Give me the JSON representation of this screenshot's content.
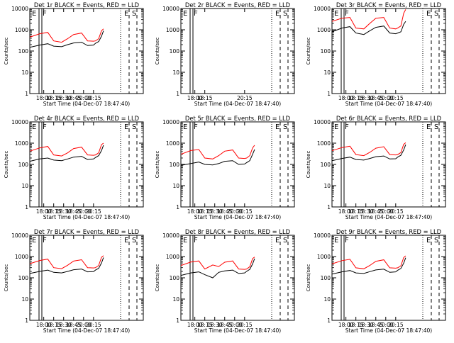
{
  "figure": {
    "xlabel": "Start Time (04-Dec-07 18:47:40)",
    "ylabel": "Counts/sec",
    "legend": "BLACK = Events, RED = LLD",
    "event_label": "Events",
    "lld_label": "LLD",
    "colors": {
      "events": "#000000",
      "lld": "#ff0000",
      "axes": "#000000",
      "background": "#ffffff"
    }
  },
  "chart_data": [
    {
      "type": "line",
      "title": "Det 1r BLACK = Events, RED = LLD",
      "detector": "Det 1r",
      "xlabel": "Start Time (04-Dec-07 18:47:40)",
      "ylabel": "Counts/sec",
      "yscale": "log",
      "xlim": [
        17.65,
        20.5
      ],
      "ylim": [
        1,
        10000
      ],
      "xticks": [
        18.0,
        18.25,
        18.5,
        18.75,
        19.0,
        19.25
      ],
      "xticklabels": [
        "18:00",
        "18:15",
        "18:30",
        "18:45",
        "20:00",
        "20:15"
      ],
      "yticks": [
        1,
        10,
        100,
        1000,
        10000
      ],
      "yticklabels": [
        "1",
        "10",
        "100",
        "1000",
        "10000"
      ],
      "markers": [
        "E",
        "F",
        "E",
        "S"
      ],
      "shape": "dip",
      "series": [
        {
          "name": "Events",
          "x": [
            17.65,
            17.9,
            18.1,
            18.25,
            18.45,
            18.6,
            18.75,
            18.95,
            19.1,
            19.25,
            19.3,
            19.38,
            19.45,
            19.5
          ],
          "y": [
            150,
            190,
            220,
            170,
            160,
            200,
            240,
            260,
            180,
            190,
            230,
            280,
            500,
            900
          ]
        },
        {
          "name": "LLD",
          "x": [
            17.65,
            17.9,
            18.1,
            18.25,
            18.45,
            18.6,
            18.75,
            18.95,
            19.1,
            19.25,
            19.3,
            19.38,
            19.45,
            19.5
          ],
          "y": [
            450,
            650,
            750,
            300,
            260,
            380,
            600,
            700,
            300,
            290,
            300,
            380,
            900,
            1100
          ]
        }
      ]
    },
    {
      "type": "line",
      "title": "Det 2r BLACK = Events, RED = LLD",
      "detector": "Det 2r",
      "xlabel": "Start Time (04-Dec-07 18:47:40)",
      "ylabel": "Counts/sec",
      "yscale": "log",
      "xlim": [
        17.65,
        20.5
      ],
      "ylim": [
        1,
        10000
      ],
      "xticks": [
        18.0,
        18.25,
        19.25
      ],
      "xticklabels": [
        "18:00",
        "18:15",
        "20:15"
      ],
      "yticks": [
        1,
        10,
        100,
        1000,
        10000
      ],
      "yticklabels": [
        "1",
        "10",
        "100",
        "1000",
        "10000"
      ],
      "markers": [
        "E",
        "F",
        "E",
        "S"
      ],
      "shape": "none",
      "series": [
        {
          "name": "Events",
          "x": [],
          "y": []
        },
        {
          "name": "LLD",
          "x": [],
          "y": []
        }
      ]
    },
    {
      "type": "line",
      "title": "Det 3r BLACK = Events, RED = LLD",
      "detector": "Det 3r",
      "xlabel": "Start Time (04-Dec-07 18:47:40)",
      "ylabel": "Counts/sec",
      "yscale": "log",
      "xlim": [
        17.65,
        20.5
      ],
      "ylim": [
        1,
        10000
      ],
      "xticks": [
        18.0,
        18.25,
        18.5,
        18.75,
        19.0,
        19.25
      ],
      "xticklabels": [
        "18:00",
        "18:15",
        "18:30",
        "18:45",
        "20:00",
        "20:15"
      ],
      "yticks": [
        1,
        10,
        100,
        1000,
        10000
      ],
      "yticklabels": [
        "1",
        "10",
        "100",
        "1000",
        "10000"
      ],
      "markers": [
        "E",
        "F",
        "E",
        "S"
      ],
      "shape": "dip",
      "series": [
        {
          "name": "Events",
          "x": [
            17.65,
            17.9,
            18.1,
            18.25,
            18.45,
            18.6,
            18.75,
            18.95,
            19.1,
            19.25,
            19.3,
            19.38,
            19.45,
            19.5
          ],
          "y": [
            800,
            1200,
            1400,
            700,
            600,
            900,
            1300,
            1500,
            700,
            650,
            700,
            800,
            1800,
            2500
          ]
        },
        {
          "name": "LLD",
          "x": [
            17.65,
            17.9,
            18.1,
            18.25,
            18.45,
            18.6,
            18.75,
            18.95,
            19.1,
            19.25,
            19.3,
            19.38,
            19.45,
            19.5
          ],
          "y": [
            2500,
            3500,
            3800,
            1200,
            1100,
            2000,
            3500,
            3800,
            1200,
            1100,
            1200,
            1500,
            6000,
            9000
          ]
        }
      ]
    },
    {
      "type": "line",
      "title": "Det 4r BLACK = Events, RED = LLD",
      "detector": "Det 4r",
      "xlabel": "Start Time (04-Dec-07 18:47:40)",
      "ylabel": "Counts/sec",
      "yscale": "log",
      "xlim": [
        17.65,
        20.5
      ],
      "ylim": [
        1,
        10000
      ],
      "xticks": [
        18.0,
        18.25,
        18.5,
        18.75,
        19.0,
        19.25
      ],
      "xticklabels": [
        "18:00",
        "18:15",
        "18:30",
        "18:45",
        "20:00",
        "20:15"
      ],
      "yticks": [
        1,
        10,
        100,
        1000,
        10000
      ],
      "yticklabels": [
        "1",
        "10",
        "100",
        "1000",
        "10000"
      ],
      "markers": [
        "E",
        "F",
        "E",
        "S"
      ],
      "shape": "dip",
      "series": [
        {
          "name": "Events",
          "x": [
            17.65,
            17.9,
            18.1,
            18.25,
            18.45,
            18.6,
            18.75,
            18.95,
            19.1,
            19.25,
            19.3,
            19.38,
            19.45,
            19.5
          ],
          "y": [
            140,
            180,
            200,
            160,
            150,
            180,
            220,
            240,
            170,
            180,
            210,
            260,
            450,
            800
          ]
        },
        {
          "name": "LLD",
          "x": [
            17.65,
            17.9,
            18.1,
            18.25,
            18.45,
            18.6,
            18.75,
            18.95,
            19.1,
            19.25,
            19.3,
            19.38,
            19.45,
            19.5
          ],
          "y": [
            420,
            600,
            700,
            280,
            250,
            350,
            560,
            650,
            280,
            270,
            280,
            350,
            850,
            1000
          ]
        }
      ]
    },
    {
      "type": "line",
      "title": "Det 5r BLACK = Events, RED = LLD",
      "detector": "Det 5r",
      "xlabel": "Start Time (04-Dec-07 18:47:40)",
      "ylabel": "Counts/sec",
      "yscale": "log",
      "xlim": [
        17.65,
        20.5
      ],
      "ylim": [
        1,
        10000
      ],
      "xticks": [
        18.0,
        18.25,
        18.5,
        18.75,
        19.0,
        19.25
      ],
      "xticklabels": [
        "18:00",
        "18:15",
        "18:30",
        "18:45",
        "20:00",
        "20:15"
      ],
      "yticks": [
        1,
        10,
        100,
        1000,
        10000
      ],
      "yticklabels": [
        "1",
        "10",
        "100",
        "1000",
        "10000"
      ],
      "markers": [
        "E",
        "F",
        "E",
        "S"
      ],
      "shape": "dip",
      "series": [
        {
          "name": "Events",
          "x": [
            17.65,
            17.9,
            18.1,
            18.25,
            18.45,
            18.6,
            18.75,
            18.95,
            19.1,
            19.25,
            19.3,
            19.38,
            19.45,
            19.5
          ],
          "y": [
            90,
            110,
            130,
            100,
            95,
            110,
            140,
            150,
            100,
            105,
            120,
            150,
            300,
            500
          ]
        },
        {
          "name": "LLD",
          "x": [
            17.65,
            17.9,
            18.1,
            18.25,
            18.45,
            18.6,
            18.75,
            18.95,
            19.1,
            19.25,
            19.3,
            19.38,
            19.45,
            19.5
          ],
          "y": [
            300,
            450,
            500,
            200,
            180,
            260,
            420,
            480,
            200,
            190,
            200,
            260,
            600,
            800
          ]
        }
      ]
    },
    {
      "type": "line",
      "title": "Det 6r BLACK = Events, RED = LLD",
      "detector": "Det 6r",
      "xlabel": "Start Time (04-Dec-07 18:47:40)",
      "ylabel": "Counts/sec",
      "yscale": "log",
      "xlim": [
        17.65,
        20.5
      ],
      "ylim": [
        1,
        10000
      ],
      "xticks": [
        18.0,
        18.25,
        18.5,
        18.75,
        19.0,
        19.25
      ],
      "xticklabels": [
        "18:00",
        "18:15",
        "18:30",
        "18:45",
        "20:00",
        "20:15"
      ],
      "yticks": [
        1,
        10,
        100,
        1000,
        10000
      ],
      "yticklabels": [
        "1",
        "10",
        "100",
        "1000",
        "10000"
      ],
      "markers": [
        "E",
        "F",
        "E",
        "S"
      ],
      "shape": "dip",
      "series": [
        {
          "name": "Events",
          "x": [
            17.65,
            17.9,
            18.1,
            18.25,
            18.45,
            18.6,
            18.75,
            18.95,
            19.1,
            19.25,
            19.3,
            19.38,
            19.45,
            19.5
          ],
          "y": [
            150,
            190,
            220,
            170,
            160,
            190,
            230,
            250,
            180,
            185,
            220,
            270,
            480,
            850
          ]
        },
        {
          "name": "LLD",
          "x": [
            17.65,
            17.9,
            18.1,
            18.25,
            18.45,
            18.6,
            18.75,
            18.95,
            19.1,
            19.25,
            19.3,
            19.38,
            19.45,
            19.5
          ],
          "y": [
            440,
            620,
            720,
            290,
            260,
            370,
            580,
            680,
            290,
            280,
            290,
            360,
            880,
            1050
          ]
        }
      ]
    },
    {
      "type": "line",
      "title": "Det 7r BLACK = Events, RED = LLD",
      "detector": "Det 7r",
      "xlabel": "Start Time (04-Dec-07 18:47:40)",
      "ylabel": "Counts/sec",
      "yscale": "log",
      "xlim": [
        17.65,
        20.5
      ],
      "ylim": [
        1,
        10000
      ],
      "xticks": [
        18.0,
        18.25,
        18.5,
        18.75,
        19.0,
        19.25
      ],
      "xticklabels": [
        "18:00",
        "18:15",
        "18:30",
        "18:45",
        "20:00",
        "20:15"
      ],
      "yticks": [
        1,
        10,
        100,
        1000,
        10000
      ],
      "yticklabels": [
        "1",
        "10",
        "100",
        "1000",
        "10000"
      ],
      "markers": [
        "E",
        "F",
        "E",
        "S"
      ],
      "shape": "dip",
      "series": [
        {
          "name": "Events",
          "x": [
            17.65,
            17.9,
            18.1,
            18.25,
            18.45,
            18.6,
            18.75,
            18.95,
            19.1,
            19.25,
            19.3,
            19.38,
            19.45,
            19.5
          ],
          "y": [
            160,
            200,
            230,
            180,
            170,
            200,
            240,
            260,
            190,
            195,
            230,
            280,
            500,
            900
          ]
        },
        {
          "name": "LLD",
          "x": [
            17.65,
            17.9,
            18.1,
            18.25,
            18.45,
            18.6,
            18.75,
            18.95,
            19.1,
            19.25,
            19.3,
            19.38,
            19.45,
            19.5
          ],
          "y": [
            460,
            650,
            760,
            300,
            270,
            390,
            610,
            710,
            300,
            290,
            300,
            380,
            920,
            1100
          ]
        }
      ]
    },
    {
      "type": "line",
      "title": "Det 8r BLACK = Events, RED = LLD",
      "detector": "Det 8r",
      "xlabel": "Start Time (04-Dec-07 18:47:40)",
      "ylabel": "Counts/sec",
      "yscale": "log",
      "xlim": [
        17.65,
        20.5
      ],
      "ylim": [
        1,
        10000
      ],
      "xticks": [
        18.0,
        18.25,
        18.5,
        18.75,
        19.0,
        19.25
      ],
      "xticklabels": [
        "18:00",
        "18:15",
        "18:30",
        "18:45",
        "20:00",
        "20:15"
      ],
      "yticks": [
        1,
        10,
        100,
        1000,
        10000
      ],
      "yticklabels": [
        "1",
        "10",
        "100",
        "1000",
        "10000"
      ],
      "markers": [
        "E",
        "F",
        "E",
        "S"
      ],
      "shape": "dip",
      "series": [
        {
          "name": "Events",
          "x": [
            17.65,
            17.9,
            18.1,
            18.25,
            18.45,
            18.6,
            18.75,
            18.95,
            19.1,
            19.25,
            19.3,
            19.38,
            19.45,
            19.5
          ],
          "y": [
            130,
            170,
            190,
            140,
            100,
            180,
            210,
            230,
            160,
            170,
            200,
            250,
            450,
            800
          ]
        },
        {
          "name": "LLD",
          "x": [
            17.65,
            17.9,
            18.1,
            18.25,
            18.45,
            18.6,
            18.75,
            18.95,
            19.1,
            19.25,
            19.3,
            19.38,
            19.45,
            19.5
          ],
          "y": [
            380,
            550,
            620,
            260,
            400,
            340,
            540,
            620,
            260,
            250,
            260,
            330,
            800,
            950
          ]
        }
      ]
    },
    {
      "type": "line",
      "title": "Det 9r BLACK = Events, RED = LLD",
      "detector": "Det 9r",
      "xlabel": "Start Time (04-Dec-07 18:47:40)",
      "ylabel": "Counts/sec",
      "yscale": "log",
      "xlim": [
        17.65,
        20.5
      ],
      "ylim": [
        1,
        10000
      ],
      "xticks": [
        18.0,
        18.25,
        18.5,
        18.75,
        19.0,
        19.25
      ],
      "xticklabels": [
        "18:00",
        "18:15",
        "18:30",
        "18:45",
        "20:00",
        "20:15"
      ],
      "yticks": [
        1,
        10,
        100,
        1000,
        10000
      ],
      "yticklabels": [
        "1",
        "10",
        "100",
        "1000",
        "10000"
      ],
      "markers": [
        "E",
        "F",
        "E",
        "S"
      ],
      "shape": "dip",
      "series": [
        {
          "name": "Events",
          "x": [
            17.65,
            17.9,
            18.1,
            18.25,
            18.45,
            18.6,
            18.75,
            18.95,
            19.1,
            19.25,
            19.3,
            19.38,
            19.45,
            19.5
          ],
          "y": [
            150,
            190,
            220,
            170,
            160,
            195,
            235,
            255,
            180,
            190,
            225,
            275,
            490,
            880
          ]
        },
        {
          "name": "LLD",
          "x": [
            17.65,
            17.9,
            18.1,
            18.25,
            18.45,
            18.6,
            18.75,
            18.95,
            19.1,
            19.25,
            19.3,
            19.38,
            19.45,
            19.5
          ],
          "y": [
            450,
            640,
            740,
            295,
            265,
            380,
            600,
            700,
            295,
            285,
            295,
            370,
            900,
            1080
          ]
        }
      ]
    }
  ]
}
